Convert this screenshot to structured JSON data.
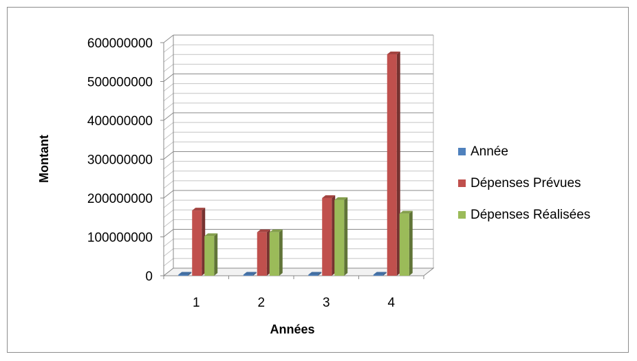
{
  "chart_data": {
    "type": "bar",
    "categories": [
      "1",
      "2",
      "3",
      "4"
    ],
    "series": [
      {
        "name": "Année",
        "values": [
          1,
          2,
          3,
          4
        ],
        "color": "#4f81bd"
      },
      {
        "name": "Dépenses Prévues",
        "values": [
          168000000,
          112000000,
          200000000,
          570000000
        ],
        "color": "#c0504d"
      },
      {
        "name": "Dépenses Réalisées",
        "values": [
          102000000,
          112000000,
          195000000,
          160000000
        ],
        "color": "#9bbb59"
      }
    ],
    "title": "",
    "xlabel": "Années",
    "ylabel": "Montant",
    "ylim": [
      0,
      600000000
    ],
    "yticks": [
      "0",
      "100000000",
      "200000000",
      "300000000",
      "400000000",
      "500000000",
      "600000000"
    ],
    "legend_position": "right",
    "grid": true,
    "style": "3d-column"
  }
}
